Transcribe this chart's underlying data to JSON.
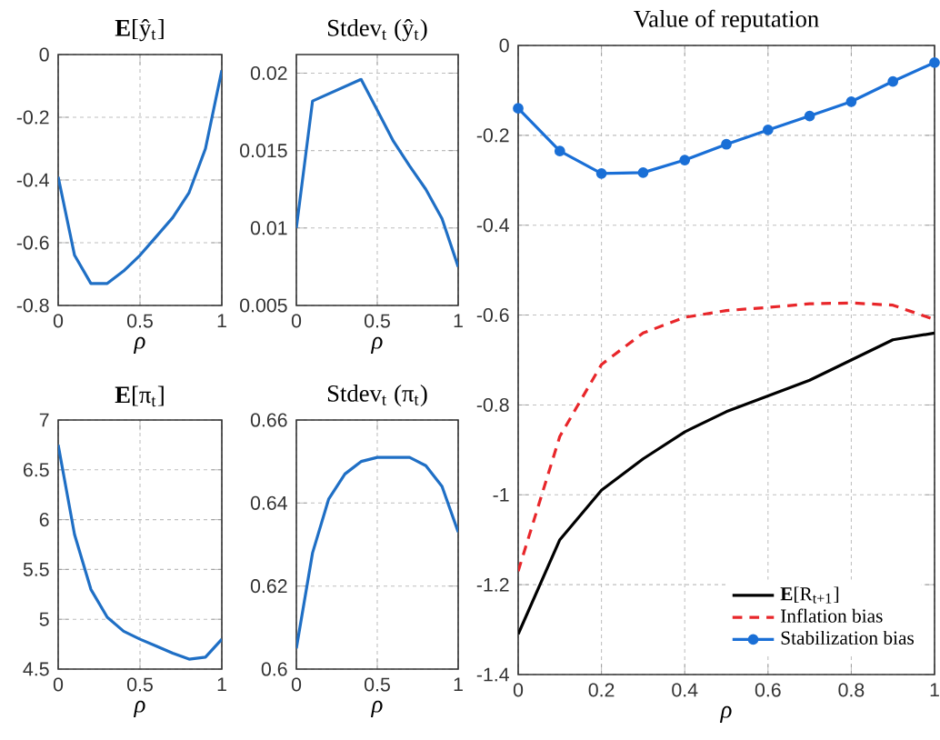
{
  "chart_data": [
    {
      "type": "line",
      "title": "**E**[ŷ$_{t}$]",
      "xlabel": "ρ",
      "x": [
        0,
        0.1,
        0.2,
        0.3,
        0.4,
        0.5,
        0.6,
        0.7,
        0.8,
        0.9,
        1
      ],
      "xlim": [
        0,
        1
      ],
      "ylim": [
        -0.8,
        0
      ],
      "xticks": [
        0,
        0.5,
        1
      ],
      "yticks": [
        -0.8,
        -0.6,
        -0.4,
        -0.2,
        0
      ],
      "grid": true,
      "series": [
        {
          "color": "#1f6fc5",
          "values": [
            -0.39,
            -0.64,
            -0.73,
            -0.73,
            -0.69,
            -0.64,
            -0.58,
            -0.52,
            -0.44,
            -0.3,
            -0.05
          ]
        }
      ]
    },
    {
      "type": "line",
      "title": "Stdev$_{t}$ (ŷ$_{t}$)",
      "xlabel": "ρ",
      "x": [
        0,
        0.1,
        0.2,
        0.3,
        0.4,
        0.5,
        0.6,
        0.7,
        0.8,
        0.9,
        1
      ],
      "xlim": [
        0,
        1
      ],
      "ylim": [
        0.005,
        0.0212
      ],
      "xticks": [
        0,
        0.5,
        1
      ],
      "yticks": [
        0.005,
        0.01,
        0.015,
        0.02
      ],
      "grid": true,
      "series": [
        {
          "color": "#1f6fc5",
          "values": [
            0.01,
            0.0182,
            null,
            null,
            0.0196,
            0.0176,
            0.0156,
            0.014,
            0.0125,
            0.0106,
            0.0075
          ]
        }
      ]
    },
    {
      "type": "line",
      "title": "**E**[π$_{t}$]",
      "xlabel": "ρ",
      "x": [
        0,
        0.1,
        0.2,
        0.3,
        0.4,
        0.5,
        0.6,
        0.7,
        0.8,
        0.9,
        1
      ],
      "xlim": [
        0,
        1
      ],
      "ylim": [
        4.5,
        7
      ],
      "xticks": [
        0,
        0.5,
        1
      ],
      "yticks": [
        4.5,
        5,
        5.5,
        6,
        6.5,
        7
      ],
      "grid": true,
      "series": [
        {
          "color": "#1f6fc5",
          "values": [
            6.75,
            5.85,
            5.3,
            5.02,
            4.88,
            4.8,
            4.73,
            4.66,
            4.6,
            4.62,
            4.8
          ]
        }
      ]
    },
    {
      "type": "line",
      "title": "Stdev$_{t}$ (π$_{t}$)",
      "xlabel": "ρ",
      "x": [
        0,
        0.1,
        0.2,
        0.3,
        0.4,
        0.5,
        0.6,
        0.7,
        0.8,
        0.9,
        1
      ],
      "xlim": [
        0,
        1
      ],
      "ylim": [
        0.6,
        0.66
      ],
      "xticks": [
        0,
        0.5,
        1
      ],
      "yticks": [
        0.6,
        0.62,
        0.64,
        0.66
      ],
      "grid": true,
      "series": [
        {
          "color": "#1f6fc5",
          "values": [
            0.605,
            0.628,
            0.641,
            0.647,
            0.65,
            0.651,
            0.651,
            0.651,
            0.649,
            0.644,
            0.633
          ]
        }
      ]
    },
    {
      "type": "line",
      "title": "Value of reputation",
      "xlabel": "ρ",
      "x": [
        0,
        0.1,
        0.2,
        0.3,
        0.4,
        0.5,
        0.6,
        0.7,
        0.8,
        0.9,
        1
      ],
      "xlim": [
        0,
        1
      ],
      "ylim": [
        -1.4,
        0
      ],
      "xticks": [
        0,
        0.2,
        0.4,
        0.6,
        0.8,
        1
      ],
      "yticks": [
        -1.4,
        -1.2,
        -1,
        -0.8,
        -0.6,
        -0.4,
        -0.2,
        0
      ],
      "grid": true,
      "legend": "bottom right",
      "series": [
        {
          "name": "**E**[R$_{t+1}$]",
          "color": "#000000",
          "line_style": "solid",
          "marker": "none",
          "values": [
            -1.31,
            -1.1,
            -0.99,
            -0.92,
            -0.86,
            -0.815,
            -0.78,
            -0.745,
            -0.7,
            -0.655,
            -0.64
          ]
        },
        {
          "name": "Inflation bias",
          "color": "#e8262a",
          "line_style": "dashed",
          "marker": "none",
          "values": [
            -1.17,
            -0.87,
            -0.71,
            -0.64,
            -0.605,
            -0.59,
            -0.583,
            -0.575,
            -0.573,
            -0.578,
            -0.61
          ]
        },
        {
          "name": "Stabilization bias",
          "color": "#1a6fd6",
          "line_style": "solid",
          "marker": "circle",
          "values": [
            -0.14,
            -0.235,
            -0.285,
            -0.283,
            -0.255,
            -0.22,
            -0.188,
            -0.157,
            -0.125,
            -0.08,
            -0.038
          ]
        }
      ]
    }
  ]
}
